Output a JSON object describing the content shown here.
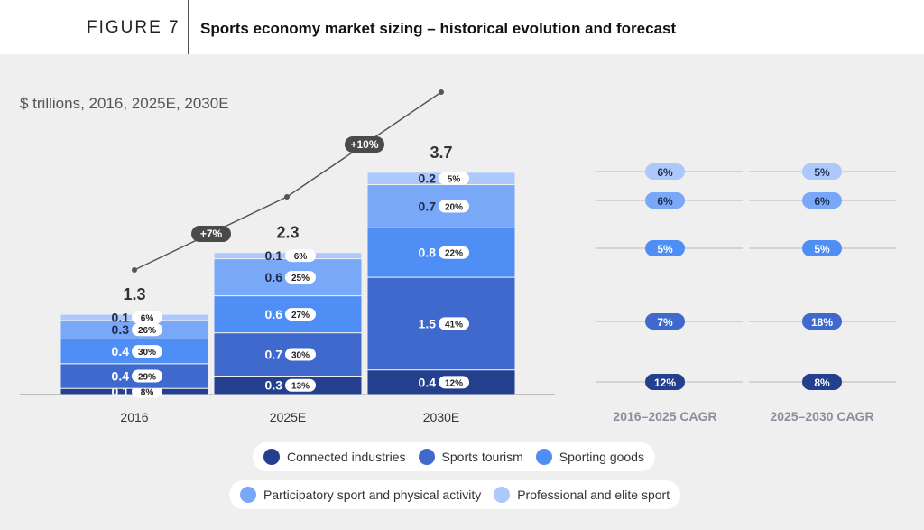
{
  "header": {
    "figure_label": "FIGURE 7",
    "title": "Sports economy market sizing – historical evolution and forecast"
  },
  "chart_data": {
    "type": "bar",
    "stacked": true,
    "unit_label": "$ trillions, 2016, 2025E, 2030E",
    "categories": [
      "2016",
      "2025E",
      "2030E"
    ],
    "totals": [
      "1.3",
      "2.3",
      "3.7"
    ],
    "series": [
      {
        "name": "Connected industries",
        "color": "#233f8d",
        "values": [
          0.1,
          0.3,
          0.4
        ],
        "shares": [
          "8%",
          "13%",
          "12%"
        ]
      },
      {
        "name": "Sports tourism",
        "color": "#3f69cc",
        "values": [
          0.4,
          0.7,
          1.5
        ],
        "shares": [
          "29%",
          "30%",
          "41%"
        ]
      },
      {
        "name": "Sporting goods",
        "color": "#4f8ef4",
        "values": [
          0.4,
          0.6,
          0.8
        ],
        "shares": [
          "30%",
          "27%",
          "22%"
        ]
      },
      {
        "name": "Participatory sport and physical activity",
        "color": "#7aa8f9",
        "values": [
          0.3,
          0.6,
          0.7
        ],
        "shares": [
          "26%",
          "25%",
          "20%"
        ]
      },
      {
        "name": "Professional and elite sport",
        "color": "#adc8fb",
        "values": [
          0.1,
          0.1,
          0.2
        ],
        "shares": [
          "6%",
          "6%",
          "5%"
        ]
      }
    ],
    "growth_line": {
      "labels": [
        "+7%",
        "+10%"
      ]
    },
    "cagr_columns": [
      {
        "title": "2016–2025 CAGR",
        "values": [
          "12%",
          "7%",
          "5%",
          "6%",
          "6%"
        ]
      },
      {
        "title": "2025–2030 CAGR",
        "values": [
          "8%",
          "18%",
          "5%",
          "6%",
          "5%"
        ]
      }
    ]
  }
}
